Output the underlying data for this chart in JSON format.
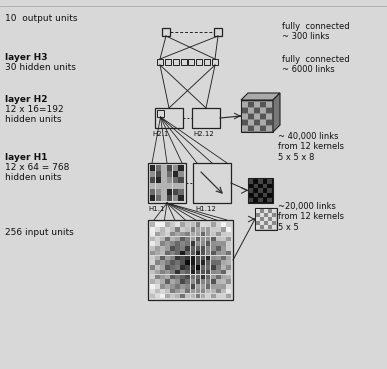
{
  "bg_color": "#d8d8d8",
  "border_color": "#222222",
  "text_color": "#111111",
  "line_color": "#222222",
  "figsize": [
    3.87,
    3.69
  ],
  "dpi": 100,
  "labels": {
    "output": "10  output units",
    "h3_bold": "layer H3",
    "h3_sub": "30 hidden units",
    "h2_bold": "layer H2",
    "h2_sub1": "12 x 16=192",
    "h2_sub2": "hidden units",
    "h1_bold": "layer H1",
    "h1_sub1": "12 x 64 = 768",
    "h1_sub2": "hidden units",
    "input": "256 input units",
    "fc300": "fully  connected\n~ 300 links",
    "fc6000": "fully  connected\n~ 6000 links",
    "links40k": "~ 40,000 links\nfrom 12 kernels\n5 x 5 x 8",
    "links20k": "~20,000 links\nfrom 12 kernels\n5 x 5",
    "h21": "H2.1",
    "h212": "H2.12",
    "h11": "H1.1",
    "h112": "H1.12"
  }
}
